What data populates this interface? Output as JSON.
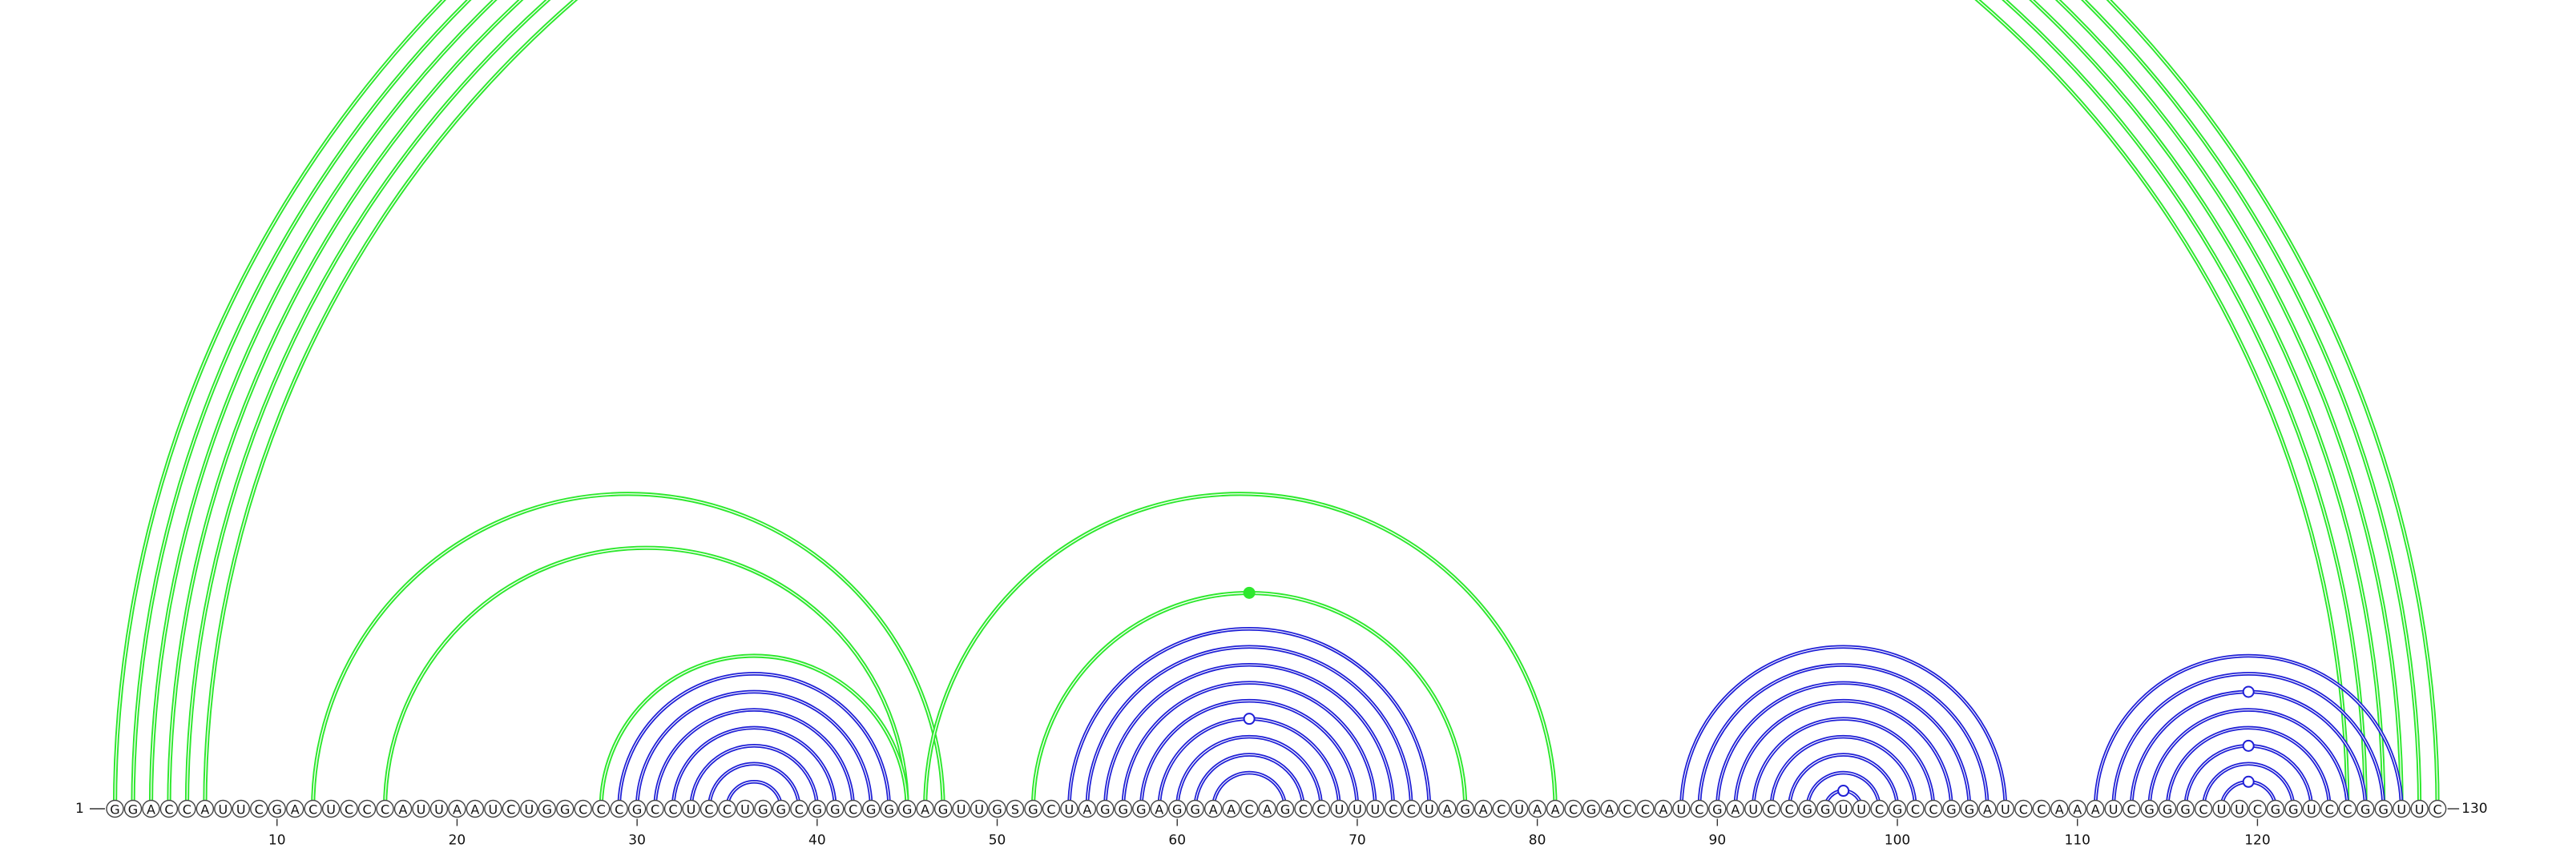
{
  "sequence": "GGACCAUUCGACUCCCAUUAAUCUGGCCCGCCUCCUGGCGGCGGGAGUUGSGCUAGGGAGGAACAGCCUUUCCUAGACUAACGACCAUCGAUCCGGUUCGCCGGAUCCAAAUCGGGCUUCGGUCCGGUUC",
  "start_label": "1",
  "end_label": "130",
  "ticks": [
    "10",
    "20",
    "30",
    "40",
    "50",
    "60",
    "70",
    "80",
    "90",
    "100",
    "110",
    "120"
  ],
  "colors": {
    "tertiary": "#2ee82e",
    "secondary": "#1f1fd6"
  },
  "arcs": [
    {
      "i": 1,
      "j": 130,
      "type": "tertiary"
    },
    {
      "i": 2,
      "j": 129,
      "type": "tertiary"
    },
    {
      "i": 3,
      "j": 128,
      "type": "tertiary"
    },
    {
      "i": 4,
      "j": 127,
      "type": "tertiary"
    },
    {
      "i": 5,
      "j": 126,
      "type": "tertiary"
    },
    {
      "i": 6,
      "j": 125,
      "type": "tertiary"
    },
    {
      "i": 12,
      "j": 47,
      "type": "tertiary"
    },
    {
      "i": 16,
      "j": 45,
      "type": "tertiary"
    },
    {
      "i": 46,
      "j": 81,
      "type": "tertiary"
    },
    {
      "i": 28,
      "j": 45,
      "type": "tertiary"
    },
    {
      "i": 52,
      "j": 76,
      "type": "tertiary"
    },
    {
      "i": 29,
      "j": 44,
      "type": "secondary"
    },
    {
      "i": 30,
      "j": 43,
      "type": "secondary"
    },
    {
      "i": 31,
      "j": 42,
      "type": "secondary"
    },
    {
      "i": 32,
      "j": 41,
      "type": "secondary"
    },
    {
      "i": 33,
      "j": 40,
      "type": "secondary"
    },
    {
      "i": 34,
      "j": 39,
      "type": "secondary"
    },
    {
      "i": 35,
      "j": 38,
      "type": "secondary"
    },
    {
      "i": 54,
      "j": 74,
      "type": "secondary"
    },
    {
      "i": 55,
      "j": 73,
      "type": "secondary"
    },
    {
      "i": 56,
      "j": 72,
      "type": "secondary"
    },
    {
      "i": 57,
      "j": 71,
      "type": "secondary"
    },
    {
      "i": 58,
      "j": 70,
      "type": "secondary"
    },
    {
      "i": 59,
      "j": 69,
      "type": "secondary"
    },
    {
      "i": 60,
      "j": 68,
      "type": "secondary"
    },
    {
      "i": 61,
      "j": 67,
      "type": "secondary"
    },
    {
      "i": 62,
      "j": 66,
      "type": "secondary"
    },
    {
      "i": 88,
      "j": 106,
      "type": "secondary"
    },
    {
      "i": 89,
      "j": 105,
      "type": "secondary"
    },
    {
      "i": 90,
      "j": 104,
      "type": "secondary"
    },
    {
      "i": 91,
      "j": 103,
      "type": "secondary"
    },
    {
      "i": 92,
      "j": 102,
      "type": "secondary"
    },
    {
      "i": 93,
      "j": 101,
      "type": "secondary"
    },
    {
      "i": 94,
      "j": 100,
      "type": "secondary"
    },
    {
      "i": 95,
      "j": 99,
      "type": "secondary"
    },
    {
      "i": 96,
      "j": 98,
      "type": "secondary"
    },
    {
      "i": 111,
      "j": 128,
      "type": "secondary"
    },
    {
      "i": 112,
      "j": 127,
      "type": "secondary"
    },
    {
      "i": 113,
      "j": 126,
      "type": "secondary"
    },
    {
      "i": 114,
      "j": 125,
      "type": "secondary"
    },
    {
      "i": 115,
      "j": 124,
      "type": "secondary"
    },
    {
      "i": 116,
      "j": 123,
      "type": "secondary"
    },
    {
      "i": 117,
      "j": 122,
      "type": "secondary"
    },
    {
      "i": 118,
      "j": 121,
      "type": "secondary"
    }
  ],
  "markers": [
    {
      "pos": 65.5,
      "arc_top_of": [
        1,
        130
      ],
      "fill": "open",
      "type": "tertiary"
    },
    {
      "pos": 64,
      "arc_top_of": [
        52,
        76
      ],
      "fill": "filled",
      "type": "tertiary"
    },
    {
      "pos": 64,
      "arc_top_of": [
        59,
        69
      ],
      "fill": "open",
      "type": "secondary"
    },
    {
      "pos": 97,
      "arc_top_of": [
        96,
        98
      ],
      "fill": "open",
      "type": "secondary"
    },
    {
      "pos": 119.5,
      "arc_top_of": [
        113,
        126
      ],
      "fill": "open",
      "type": "secondary"
    },
    {
      "pos": 119.5,
      "arc_top_of": [
        116,
        123
      ],
      "fill": "open",
      "type": "secondary"
    },
    {
      "pos": 119.5,
      "arc_top_of": [
        118,
        121
      ],
      "fill": "open",
      "type": "secondary"
    }
  ]
}
